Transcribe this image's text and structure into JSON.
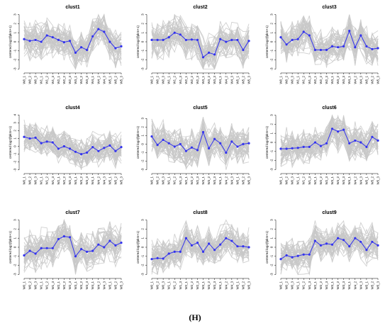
{
  "caption": "(H)",
  "chart_data": [
    {
      "type": "line",
      "title": "clust1",
      "ylabel": "centered log2(fpkm+1)",
      "x": [
        "W0_1",
        "W0_2",
        "W0_3",
        "W1_1",
        "W1_2",
        "W1_3",
        "W2_1",
        "W2_2",
        "W2_3",
        "W3_1",
        "W3_2",
        "W3_3",
        "W4_1",
        "W4_2",
        "W4_3",
        "W5_1",
        "W5_2",
        "W5_3"
      ],
      "yticks": [
        -3,
        -2,
        -1,
        0,
        1,
        2,
        3
      ],
      "ylim": [
        -3.2,
        3.2
      ],
      "series": [
        {
          "values": [
            0.3,
            0.1,
            0.2,
            0.0,
            0.7,
            0.5,
            0.2,
            -0.05,
            0.1,
            -1.2,
            -0.6,
            -0.9,
            0.6,
            1.4,
            1.1,
            0.0,
            -0.7,
            -0.5
          ],
          "color": "#3333ee"
        }
      ]
    },
    {
      "type": "line",
      "title": "clust2",
      "ylabel": "centered log2(fpkm+1)",
      "x": [
        "W0_1",
        "W0_2",
        "W0_3",
        "W1_1",
        "W1_2",
        "W1_3",
        "W2_1",
        "W2_2",
        "W2_3",
        "W3_1",
        "W3_2",
        "W3_3",
        "W4_1",
        "W4_2",
        "W4_3",
        "W5_1",
        "W5_2",
        "W5_3"
      ],
      "yticks": [
        -3,
        -2,
        -1,
        0,
        1,
        2,
        3
      ],
      "ylim": [
        -3.2,
        3.2
      ],
      "series": [
        {
          "values": [
            0.2,
            0.2,
            0.2,
            0.5,
            1.0,
            0.8,
            0.2,
            0.25,
            0.2,
            -1.7,
            -1.2,
            -1.4,
            0.3,
            0.0,
            0.2,
            0.2,
            -0.9,
            0.1
          ],
          "color": "#3333ee"
        }
      ]
    },
    {
      "type": "line",
      "title": "clust3",
      "ylabel": "centered log2(fpkm+1)",
      "x": [
        "W0_1",
        "W0_2",
        "W0_3",
        "W1_1",
        "W1_2",
        "W1_3",
        "W2_1",
        "W2_2",
        "W2_3",
        "W3_1",
        "W3_2",
        "W3_3",
        "W4_1",
        "W4_2",
        "W4_3",
        "W5_1",
        "W5_2",
        "W5_3"
      ],
      "yticks": [
        -3,
        -2,
        -1,
        0,
        1,
        2,
        3
      ],
      "ylim": [
        -3.2,
        3.2
      ],
      "series": [
        {
          "values": [
            0.5,
            -0.3,
            0.2,
            0.3,
            1.1,
            0.7,
            -0.9,
            -0.9,
            -0.9,
            -0.5,
            -0.6,
            -0.5,
            1.2,
            -0.6,
            0.7,
            -0.5,
            -0.8,
            -0.7
          ],
          "color": "#3333ee"
        }
      ]
    },
    {
      "type": "line",
      "title": "clust4",
      "ylabel": "centered log2(fpkm+1)",
      "x": [
        "W0_1",
        "W0_2",
        "W0_3",
        "W1_1",
        "W1_2",
        "W1_3",
        "W2_1",
        "W2_2",
        "W2_3",
        "W3_1",
        "W3_2",
        "W3_3",
        "W4_1",
        "W4_2",
        "W4_3",
        "W5_1",
        "W5_2",
        "W5_3"
      ],
      "yticks": [
        -3,
        -2,
        -1,
        0,
        1,
        2,
        3,
        4
      ],
      "ylim": [
        -3.2,
        4.2
      ],
      "series": [
        {
          "values": [
            1.2,
            1.0,
            1.1,
            0.4,
            0.6,
            0.5,
            -0.3,
            0.0,
            -0.3,
            -0.7,
            -1.0,
            -0.8,
            -0.1,
            -0.6,
            -0.2,
            0.1,
            -0.6,
            -0.1
          ],
          "color": "#3333ee"
        }
      ]
    },
    {
      "type": "line",
      "title": "clust5",
      "ylabel": "centered log2(fpkm+1)",
      "x": [
        "W0_1",
        "W0_2",
        "W0_3",
        "W1_1",
        "W1_2",
        "W1_3",
        "W2_1",
        "W2_2",
        "W2_3",
        "W3_1",
        "W3_2",
        "W3_3",
        "W4_1",
        "W4_2",
        "W4_3",
        "W5_1",
        "W5_2",
        "W5_3"
      ],
      "yticks": [
        -3,
        -2,
        -1,
        0,
        1,
        2,
        3
      ],
      "ylim": [
        -3.2,
        3.6
      ],
      "series": [
        {
          "values": [
            0.9,
            -0.1,
            0.5,
            0.1,
            -0.3,
            0.0,
            -0.8,
            -0.4,
            -0.7,
            1.4,
            -0.5,
            0.6,
            0.1,
            -1.0,
            0.3,
            -0.3,
            0.0,
            0.1
          ],
          "color": "#3333ee"
        }
      ]
    },
    {
      "type": "line",
      "title": "clust6",
      "ylabel": "centered log2(fpkm+1)",
      "x": [
        "W0_1",
        "W0_2",
        "W0_3",
        "W1_1",
        "W1_2",
        "W1_3",
        "W2_1",
        "W2_2",
        "W2_3",
        "W3_1",
        "W3_2",
        "W3_3",
        "W4_1",
        "W4_2",
        "W4_3",
        "W5_1",
        "W5_2",
        "W5_3"
      ],
      "yticks": [
        -3,
        -2,
        -1,
        0,
        1,
        2,
        3
      ],
      "ylim": [
        -3.2,
        3.2
      ],
      "series": [
        {
          "values": [
            -0.7,
            -0.7,
            -0.65,
            -0.6,
            -0.5,
            -0.5,
            0.0,
            -0.4,
            -0.1,
            1.5,
            1.2,
            1.4,
            -0.1,
            0.2,
            0.0,
            -0.5,
            0.6,
            0.2
          ],
          "color": "#3333ee"
        }
      ]
    },
    {
      "type": "line",
      "title": "clust7",
      "ylabel": "centered log2(fpkm+1)",
      "x": [
        "W0_1",
        "W0_2",
        "W0_3",
        "W1_1",
        "W1_2",
        "W1_3",
        "W2_1",
        "W2_2",
        "W2_3",
        "W3_1",
        "W3_2",
        "W3_3",
        "W4_1",
        "W4_2",
        "W4_3",
        "W5_1",
        "W5_2",
        "W5_3"
      ],
      "yticks": [
        -3,
        -2,
        -1,
        0,
        1,
        2,
        3
      ],
      "ylim": [
        -3.2,
        3.2
      ],
      "series": [
        {
          "values": [
            -0.9,
            -0.4,
            -0.7,
            -0.1,
            -0.1,
            -0.1,
            0.9,
            1.2,
            1.1,
            -1.0,
            -0.2,
            -0.5,
            -0.4,
            0.3,
            0.0,
            0.7,
            0.2,
            0.5
          ],
          "color": "#3333ee"
        }
      ]
    },
    {
      "type": "line",
      "title": "clust8",
      "ylabel": "centered log2(fpkm+1)",
      "x": [
        "W0_1",
        "W0_2",
        "W0_3",
        "W1_1",
        "W1_2",
        "W1_3",
        "W2_1",
        "W2_2",
        "W2_3",
        "W3_1",
        "W3_2",
        "W3_3",
        "W4_1",
        "W4_2",
        "W4_3",
        "W5_1",
        "W5_2",
        "W5_3"
      ],
      "yticks": [
        -3,
        -2,
        -1,
        0,
        1,
        2,
        3
      ],
      "ylim": [
        -3.2,
        3.2
      ],
      "series": [
        {
          "values": [
            -1.3,
            -1.2,
            -1.25,
            -0.7,
            -0.5,
            -0.5,
            1.0,
            0.2,
            0.5,
            -0.5,
            0.4,
            -0.3,
            0.3,
            1.0,
            0.7,
            0.1,
            0.1,
            0.0
          ],
          "color": "#3333ee"
        }
      ]
    },
    {
      "type": "line",
      "title": "clust9",
      "ylabel": "centered log2(fpkm+1)",
      "x": [
        "W0_1",
        "W0_2",
        "W0_3",
        "W1_1",
        "W1_2",
        "W1_3",
        "W2_1",
        "W2_2",
        "W2_3",
        "W3_1",
        "W3_2",
        "W3_3",
        "W4_1",
        "W4_2",
        "W4_3",
        "W5_1",
        "W5_2",
        "W5_3"
      ],
      "yticks": [
        -3,
        -2,
        -1,
        0,
        1,
        2,
        3
      ],
      "ylim": [
        -3.2,
        3.2
      ],
      "series": [
        {
          "values": [
            -1.3,
            -0.9,
            -1.1,
            -0.95,
            -0.8,
            -0.8,
            0.7,
            0.2,
            0.4,
            0.3,
            1.0,
            0.8,
            0.1,
            1.0,
            0.6,
            -0.3,
            0.6,
            0.2
          ],
          "color": "#3333ee"
        }
      ]
    }
  ]
}
